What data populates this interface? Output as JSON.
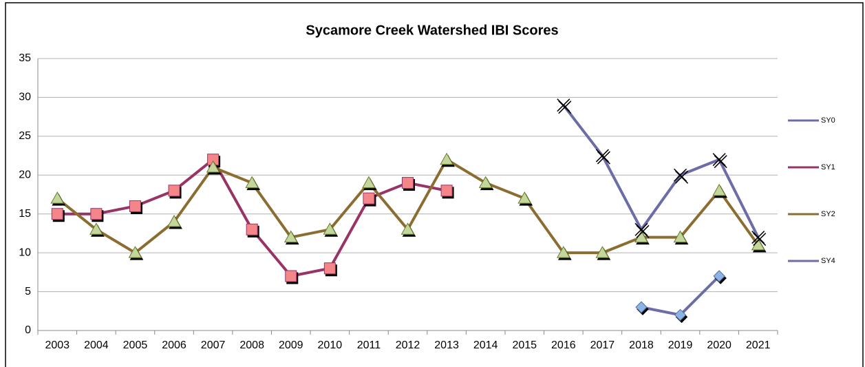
{
  "chart_data": {
    "type": "line",
    "title": "Sycamore Creek Watershed IBI Scores",
    "categories": [
      "2003",
      "2004",
      "2005",
      "2006",
      "2007",
      "2008",
      "2009",
      "2010",
      "2011",
      "2012",
      "2013",
      "2014",
      "2015",
      "2016",
      "2017",
      "2018",
      "2019",
      "2020",
      "2021"
    ],
    "series": [
      {
        "name": "SY0",
        "color": "#6b6ca8",
        "marker": "diamond",
        "marker_color": "#8db3e2",
        "values": [
          null,
          null,
          null,
          null,
          null,
          null,
          null,
          null,
          null,
          null,
          null,
          null,
          null,
          null,
          null,
          3,
          2,
          7,
          null
        ]
      },
      {
        "name": "SY1",
        "color": "#993366",
        "marker": "square",
        "marker_color": "#f4868a",
        "values": [
          15,
          15,
          16,
          18,
          22,
          13,
          7,
          8,
          17,
          19,
          18,
          null,
          null,
          null,
          null,
          null,
          null,
          null,
          null
        ]
      },
      {
        "name": "SY2",
        "color": "#8c6d31",
        "marker": "triangle",
        "marker_color": "#c3d69b",
        "values": [
          17,
          13,
          10,
          14,
          21,
          19,
          12,
          13,
          19,
          13,
          22,
          19,
          17,
          10,
          10,
          12,
          12,
          18,
          11
        ]
      },
      {
        "name": "SY4",
        "color": "#6b6ca8",
        "marker": "x",
        "marker_color": "#000000",
        "values": [
          null,
          null,
          null,
          null,
          null,
          null,
          null,
          null,
          null,
          null,
          null,
          null,
          null,
          29,
          22.5,
          13,
          20,
          22,
          12
        ]
      }
    ],
    "ylim": [
      0,
      35
    ],
    "yticks": [
      0,
      5,
      10,
      15,
      20,
      25,
      30,
      35
    ],
    "grid": true,
    "legend": "right"
  }
}
